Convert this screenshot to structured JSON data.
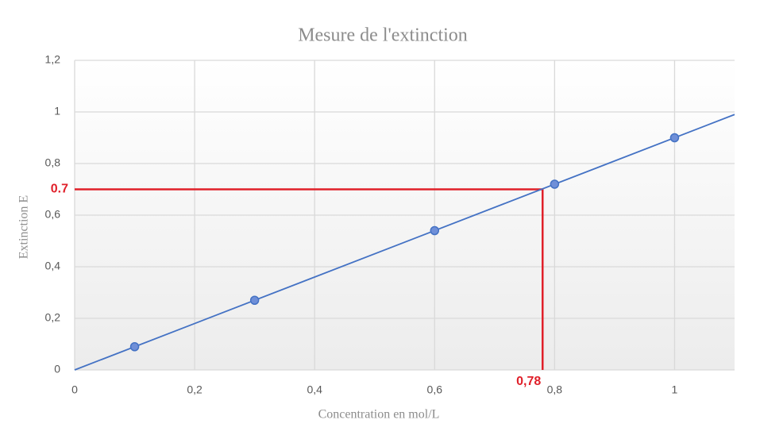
{
  "chart_data": {
    "type": "scatter",
    "title": "Mesure de l'extinction",
    "x_label": "Concentration en mol/L",
    "y_label": "Extinction E",
    "series": [
      {
        "color": "#4472c4",
        "x": [
          0.1,
          0.3,
          0.6,
          0.8,
          1
        ],
        "values": [
          0.09,
          0.27,
          0.54,
          0.72,
          0.9
        ]
      }
    ],
    "trendline": {
      "color": "#4472c4",
      "x": [
        0,
        1.1
      ],
      "y": [
        0,
        0.99
      ]
    },
    "annotation": {
      "x": 0.78,
      "y": 0.7,
      "x_label": "0,78",
      "y_label": "0.7",
      "color": "#e0202a"
    },
    "xlim": [
      0,
      1.1
    ],
    "xticks": [
      0,
      {
        "value": 0.2,
        "label": "0,2"
      },
      {
        "value": 0.4,
        "label": "0,4"
      },
      {
        "value": 0.6,
        "label": "0,6"
      },
      {
        "value": 0.8,
        "label": "0,8"
      },
      1
    ],
    "ylim": [
      0,
      1.2
    ],
    "yticks": [
      0,
      {
        "value": 0.2,
        "label": "0,2"
      },
      {
        "value": 0.4,
        "label": "0,4"
      },
      {
        "value": 0.6,
        "label": "0,6"
      },
      {
        "value": 0.8,
        "label": "0,8"
      },
      1,
      {
        "value": 1.2,
        "label": "1,2"
      }
    ],
    "grid": true
  }
}
